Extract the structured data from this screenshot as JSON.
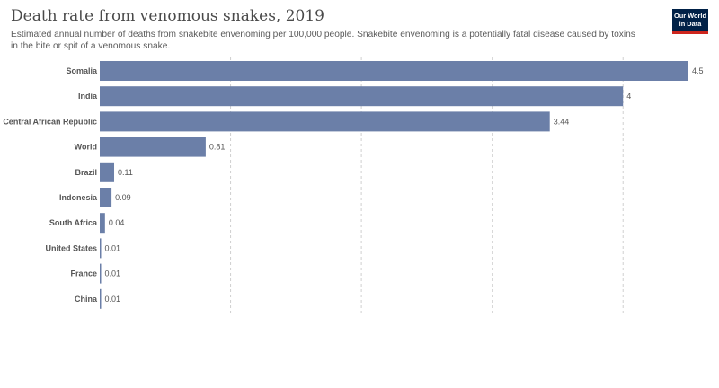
{
  "header": {
    "title": "Death rate from venomous snakes, 2019",
    "subtitle_before": "Estimated annual number of deaths from ",
    "subtitle_link": "snakebite envenoming",
    "subtitle_after": " per 100,000 people. Snakebite envenoming is a potentially fatal disease caused by toxins in the bite or spit of a venomous snake."
  },
  "logo": {
    "line1": "Our World",
    "line2": "in Data"
  },
  "colors": {
    "bar": "#6b7fa8",
    "grid": "#d0d0d0",
    "logo_bg": "#002147",
    "logo_accent": "#ce261e"
  },
  "chart_data": {
    "type": "bar",
    "orientation": "horizontal",
    "categories": [
      "Somalia",
      "India",
      "Central African Republic",
      "World",
      "Brazil",
      "Indonesia",
      "South Africa",
      "United States",
      "France",
      "China"
    ],
    "values": [
      4.5,
      4,
      3.44,
      0.81,
      0.11,
      0.09,
      0.04,
      0.01,
      0.01,
      0.01
    ],
    "value_labels": [
      "4.5",
      "4",
      "3.44",
      "0.81",
      "0.11",
      "0.09",
      "0.04",
      "0.01",
      "0.01",
      "0.01"
    ],
    "xlim": [
      0,
      4.5
    ],
    "grid": true
  }
}
